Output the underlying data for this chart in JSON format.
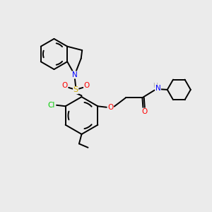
{
  "bg_color": "#ebebeb",
  "bond_color": "#000000",
  "atom_colors": {
    "N": "#0000ff",
    "O": "#ff0000",
    "S": "#ccaa00",
    "Cl": "#00cc00",
    "H": "#aaaaaa",
    "C": "#000000"
  },
  "lw": 1.4,
  "figsize": [
    3.0,
    3.0
  ],
  "dpi": 100
}
